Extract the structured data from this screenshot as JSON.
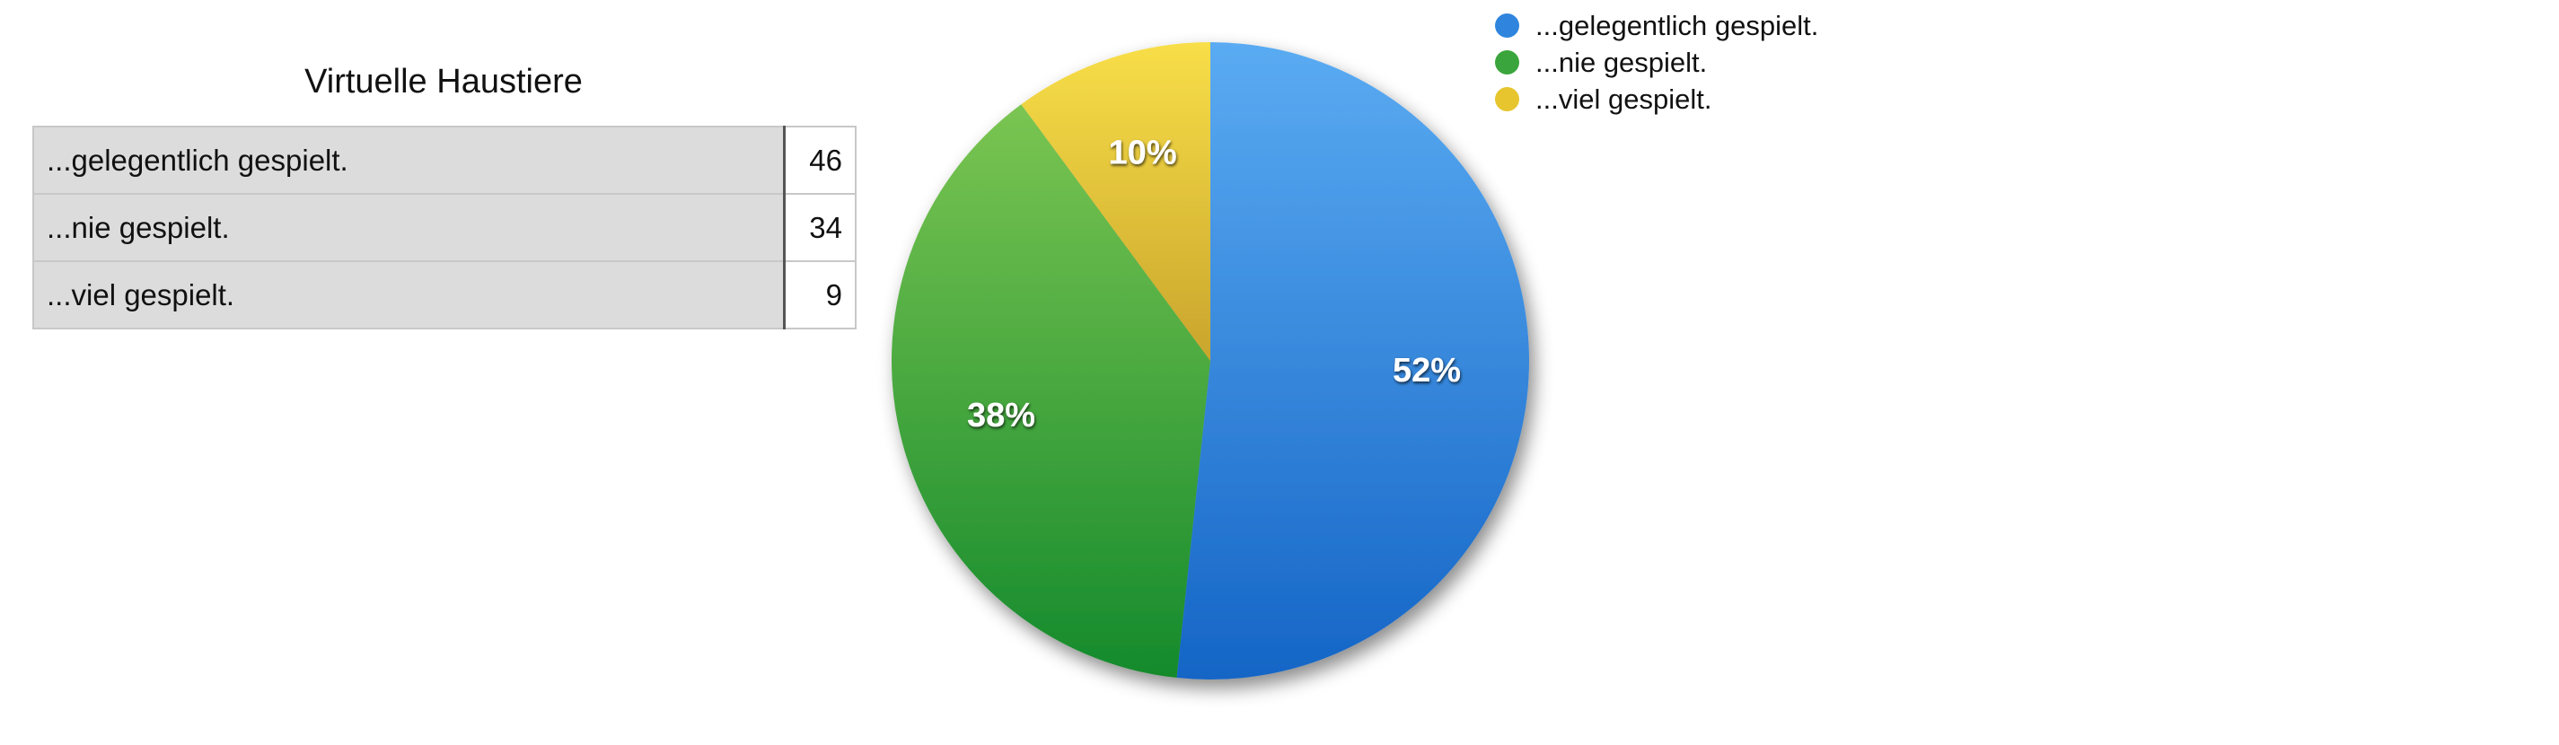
{
  "chart_data": {
    "type": "pie",
    "title": "Virtuelle Haustiere",
    "categories": [
      "...gelegentlich gespielt.",
      "...nie gespielt.",
      "...viel gespielt."
    ],
    "values": [
      46,
      34,
      9
    ],
    "percent_labels": [
      "52%",
      "38%",
      "10%"
    ],
    "colors": [
      "#2f85de",
      "#3aa53c",
      "#e6c52e"
    ],
    "legend_position": "top-right",
    "table": [
      {
        "label": "...gelegentlich gespielt.",
        "value": "46"
      },
      {
        "label": "...nie gespielt.",
        "value": "34"
      },
      {
        "label": "...viel gespielt.",
        "value": "9"
      }
    ]
  }
}
